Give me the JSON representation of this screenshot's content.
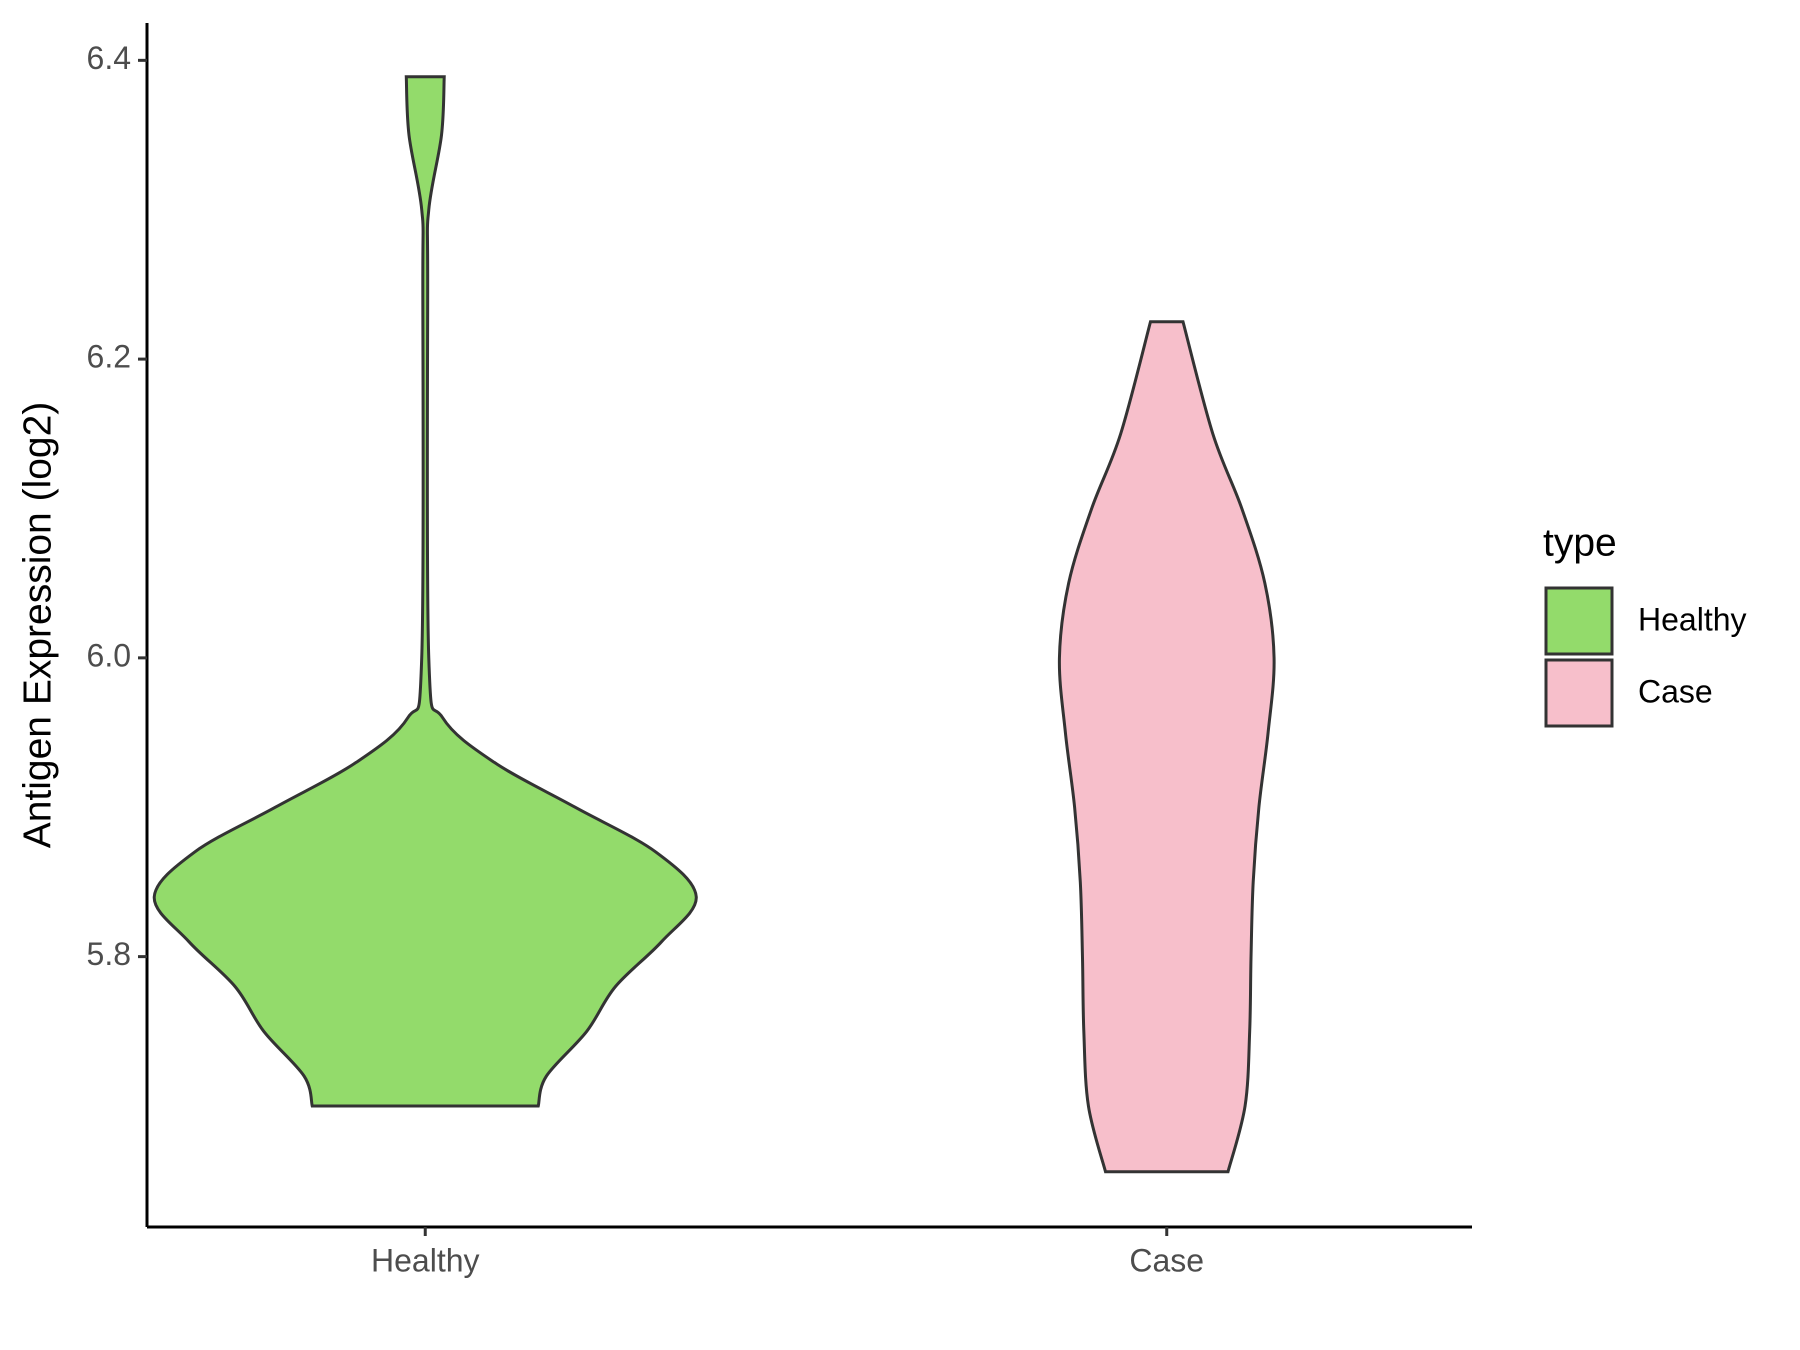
{
  "chart_data": {
    "type": "violin",
    "y_label": "Antigen Expression (log2)",
    "categories": [
      "Healthy",
      "Case"
    ],
    "legend_title": "type",
    "ylim": [
      5.619,
      6.425
    ],
    "yticks": [
      5.8,
      {
        "value": 6,
        "label": "6.0"
      },
      6.2,
      6.4
    ],
    "series": [
      {
        "name": "Healthy",
        "color": "#93DB6B",
        "y": [
          6.389,
          6.35,
          6.3,
          6.25,
          6.0,
          5.96,
          5.93,
          5.9,
          5.87,
          5.84,
          5.81,
          5.78,
          5.75,
          5.72,
          5.7
        ],
        "density": [
          0.07,
          0.06,
          0.013,
          0.009,
          0.013,
          0.064,
          0.255,
          0.553,
          0.851,
          1,
          0.872,
          0.702,
          0.596,
          0.447,
          0.417
        ]
      },
      {
        "name": "Case",
        "color": "#F7BFCB",
        "y": [
          6.225,
          6.15,
          6.1,
          6.05,
          6.0,
          5.95,
          5.9,
          5.85,
          5.8,
          5.75,
          5.7,
          5.656
        ],
        "density": [
          0.06,
          0.17,
          0.277,
          0.362,
          0.396,
          0.374,
          0.34,
          0.319,
          0.311,
          0.306,
          0.289,
          0.226
        ]
      }
    ]
  }
}
